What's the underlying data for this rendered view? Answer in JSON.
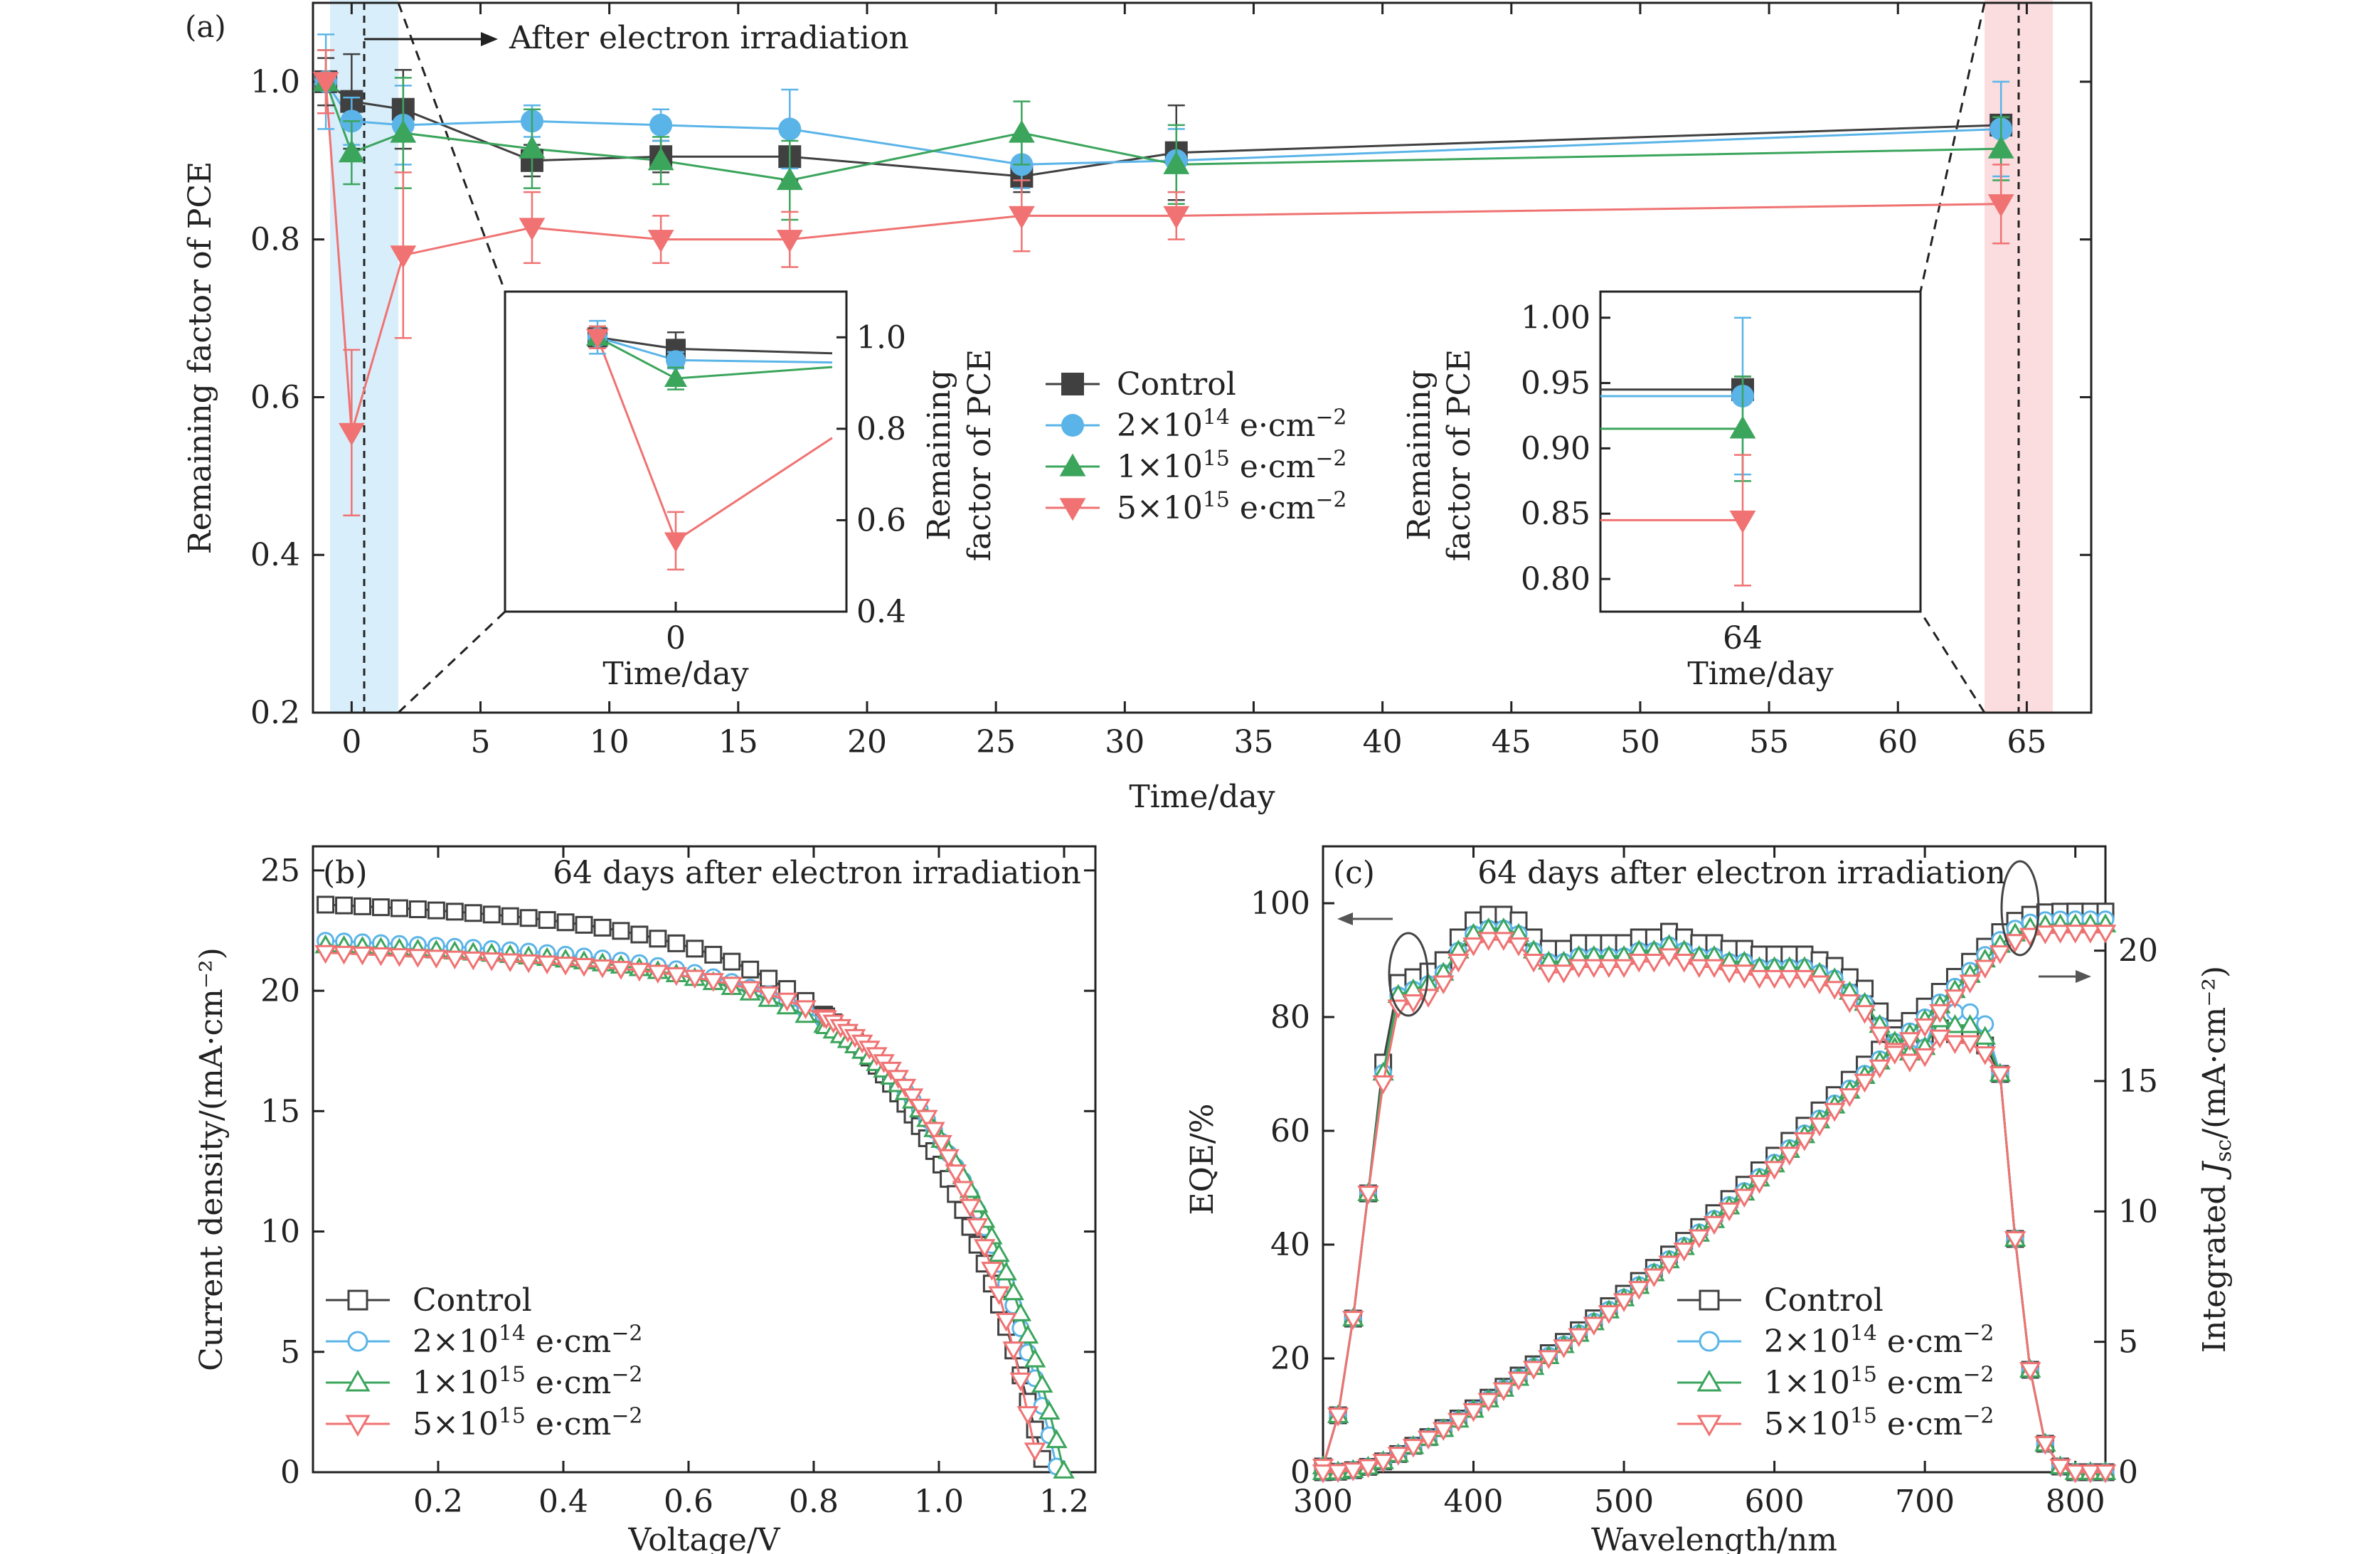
{
  "colors": {
    "control": "#404040",
    "d1": "#5AB4E8",
    "d2": "#3BA55C",
    "d3": "#F07272",
    "band_blue": "#D8EEFB",
    "band_red": "#FBDDE0",
    "axis": "#222222"
  },
  "series_names": [
    "Control",
    "2×10¹⁴ e·cm⁻²",
    "1×10¹⁵ e·cm⁻²",
    "5×10¹⁵ e·cm⁻²"
  ],
  "chart_data": [
    {
      "panel_label": "(a)",
      "type": "line",
      "xlabel": "Time/day",
      "ylabel": "Remaining factor of PCE",
      "xlim": [
        -1.5,
        67.5
      ],
      "ylim": [
        0.2,
        1.1
      ],
      "xticks": [
        0,
        5,
        10,
        15,
        20,
        25,
        30,
        35,
        40,
        45,
        50,
        55,
        60,
        65
      ],
      "yticks": [
        0.2,
        0.4,
        0.6,
        0.8,
        1.0
      ],
      "annotation": "After electron irradiation",
      "x": [
        -1,
        0,
        2,
        7,
        12,
        17,
        26,
        32,
        64
      ],
      "series": [
        {
          "name": "Control",
          "values": [
            1.0,
            0.975,
            0.965,
            0.9,
            0.905,
            0.905,
            0.88,
            0.91,
            0.945
          ],
          "errors": [
            0.03,
            0.06,
            0.05,
            0.02,
            0.02,
            0.03,
            0.02,
            0.06,
            0.01
          ]
        },
        {
          "name": "2×10¹⁴ e·cm⁻²",
          "values": [
            1.0,
            0.95,
            0.945,
            0.95,
            0.945,
            0.94,
            0.895,
            0.9,
            0.94
          ],
          "errors": [
            0.06,
            0.03,
            0.05,
            0.02,
            0.02,
            0.05,
            0.03,
            0.04,
            0.06
          ]
        },
        {
          "name": "1×10¹⁵ e·cm⁻²",
          "values": [
            1.0,
            0.91,
            0.935,
            0.915,
            0.9,
            0.875,
            0.935,
            0.895,
            0.915
          ],
          "errors": [
            0.04,
            0.04,
            0.07,
            0.05,
            0.03,
            0.05,
            0.04,
            0.05,
            0.04
          ]
        },
        {
          "name": "5×10¹⁵ e·cm⁻²",
          "values": [
            1.0,
            0.555,
            0.78,
            0.815,
            0.8,
            0.8,
            0.83,
            0.83,
            0.845
          ],
          "errors": [
            0.04,
            0.105,
            0.105,
            0.045,
            0.03,
            0.035,
            0.045,
            0.03,
            0.05
          ]
        }
      ],
      "inset_left": {
        "xlabel": "Time/day",
        "ylabel": "Remaining factor of PCE",
        "xtick": "0",
        "yticks": [
          0.4,
          0.6,
          0.8,
          1.0
        ]
      },
      "inset_right": {
        "xlabel": "Time/day",
        "ylabel": "Remaining factor of PCE",
        "xtick": "64",
        "yticks": [
          0.8,
          0.85,
          0.9,
          0.95,
          1.0
        ]
      }
    },
    {
      "panel_label": "(b)",
      "type": "line",
      "title": "64 days after electron irradiation",
      "xlabel": "Voltage/V",
      "ylabel": "Current density/(mA·cm⁻²)",
      "xlim": [
        0,
        1.25
      ],
      "ylim": [
        0,
        26
      ],
      "xticks": [
        0.2,
        0.4,
        0.6,
        0.8,
        1.0,
        1.2
      ],
      "yticks": [
        0,
        5,
        10,
        15,
        20,
        25
      ],
      "series": [
        {
          "name": "Control",
          "jsc": 23.6,
          "voc": 1.17
        },
        {
          "name": "2×10¹⁴ e·cm⁻²",
          "jsc": 22.1,
          "voc": 1.19
        },
        {
          "name": "1×10¹⁵ e·cm⁻²",
          "jsc": 21.9,
          "voc": 1.2
        },
        {
          "name": "5×10¹⁵ e·cm⁻²",
          "jsc": 21.6,
          "voc": 1.16
        }
      ]
    },
    {
      "panel_label": "(c)",
      "type": "line",
      "title": "64 days after electron irradiation",
      "xlabel": "Wavelength/nm",
      "ylabel": "EQE/%",
      "y2label": "Integrated Jsc/(mA·cm⁻²)",
      "xlim": [
        300,
        820
      ],
      "ylim": [
        0,
        110
      ],
      "y2lim": [
        0,
        24
      ],
      "xticks": [
        300,
        400,
        500,
        600,
        700,
        800
      ],
      "yticks": [
        0,
        20,
        40,
        60,
        80,
        100
      ],
      "y2ticks": [
        0,
        5,
        10,
        15,
        20
      ],
      "wavelength": [
        300,
        310,
        320,
        330,
        340,
        350,
        360,
        370,
        380,
        390,
        400,
        410,
        420,
        430,
        440,
        450,
        460,
        470,
        480,
        490,
        500,
        510,
        520,
        530,
        540,
        550,
        560,
        570,
        580,
        590,
        600,
        610,
        620,
        630,
        640,
        650,
        660,
        670,
        680,
        690,
        700,
        710,
        720,
        730,
        740,
        750,
        760,
        770,
        780,
        790,
        800,
        810,
        820
      ],
      "eqe_control": [
        1,
        10,
        27,
        49,
        72,
        86,
        87,
        88,
        90,
        94,
        97,
        98,
        98,
        97,
        94,
        92,
        92,
        93,
        93,
        93,
        93,
        94,
        94,
        95,
        94,
        93,
        93,
        92,
        92,
        91,
        91,
        91,
        91,
        90,
        89,
        87,
        85,
        81,
        78,
        76,
        77,
        78,
        77,
        77,
        75,
        70,
        41,
        18,
        5,
        1,
        0,
        0,
        0
      ],
      "jsc_final": [
        21.5,
        21.2,
        21.0,
        20.7
      ]
    }
  ]
}
